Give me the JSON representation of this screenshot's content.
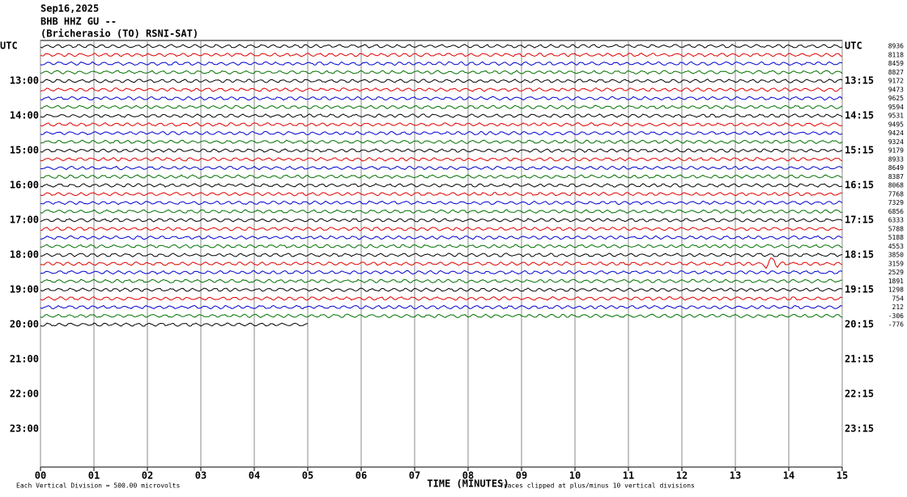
{
  "chart_data": {
    "type": "helicorder",
    "title": [
      "Sep16,2025",
      "BHB HHZ GU --",
      "(Bricherasio (TO) RSNI-SAT)"
    ],
    "left_labels": [
      "UTC",
      "13:00",
      "14:00",
      "15:00",
      "16:00",
      "17:00",
      "18:00",
      "19:00",
      "20:00",
      "21:00",
      "22:00",
      "23:00"
    ],
    "right_labels": [
      "UTC",
      "13:15",
      "14:15",
      "15:15",
      "16:15",
      "17:15",
      "18:15",
      "19:15",
      "20:15",
      "21:15",
      "22:15",
      "23:15"
    ],
    "trace_offsets": [
      8936,
      8118,
      8459,
      8827,
      9172,
      9473,
      9625,
      9594,
      9531,
      9495,
      9424,
      9324,
      9179,
      8933,
      8649,
      8387,
      8068,
      7768,
      7329,
      6856,
      6333,
      5788,
      5188,
      4553,
      3850,
      3159,
      2529,
      1891,
      1298,
      754,
      212,
      -306,
      -776
    ],
    "trace_colors": [
      "#000000",
      "#e00000",
      "#0000d0",
      "#007000"
    ],
    "xlabel": "TIME (MINUTES)",
    "xlim": [
      0,
      15
    ],
    "xticks": [
      {
        "value": 0,
        "label": "00"
      },
      {
        "value": 1,
        "label": "01"
      },
      {
        "value": 2,
        "label": "02"
      },
      {
        "value": 3,
        "label": "03"
      },
      {
        "value": 4,
        "label": "04"
      },
      {
        "value": 5,
        "label": "05"
      },
      {
        "value": 6,
        "label": "06"
      },
      {
        "value": 7,
        "label": "07"
      },
      {
        "value": 8,
        "label": "08"
      },
      {
        "value": 9,
        "label": "09"
      },
      {
        "value": 10,
        "label": "10"
      },
      {
        "value": 11,
        "label": "11"
      },
      {
        "value": 12,
        "label": "12"
      },
      {
        "value": 13,
        "label": "13"
      },
      {
        "value": 14,
        "label": "14"
      },
      {
        "value": 15,
        "label": "15"
      }
    ],
    "footer_left": "Each Vertical Division =  500.00 microvolts",
    "footer_right": "Traces clipped at plus/minus 10 vertical divisions"
  }
}
